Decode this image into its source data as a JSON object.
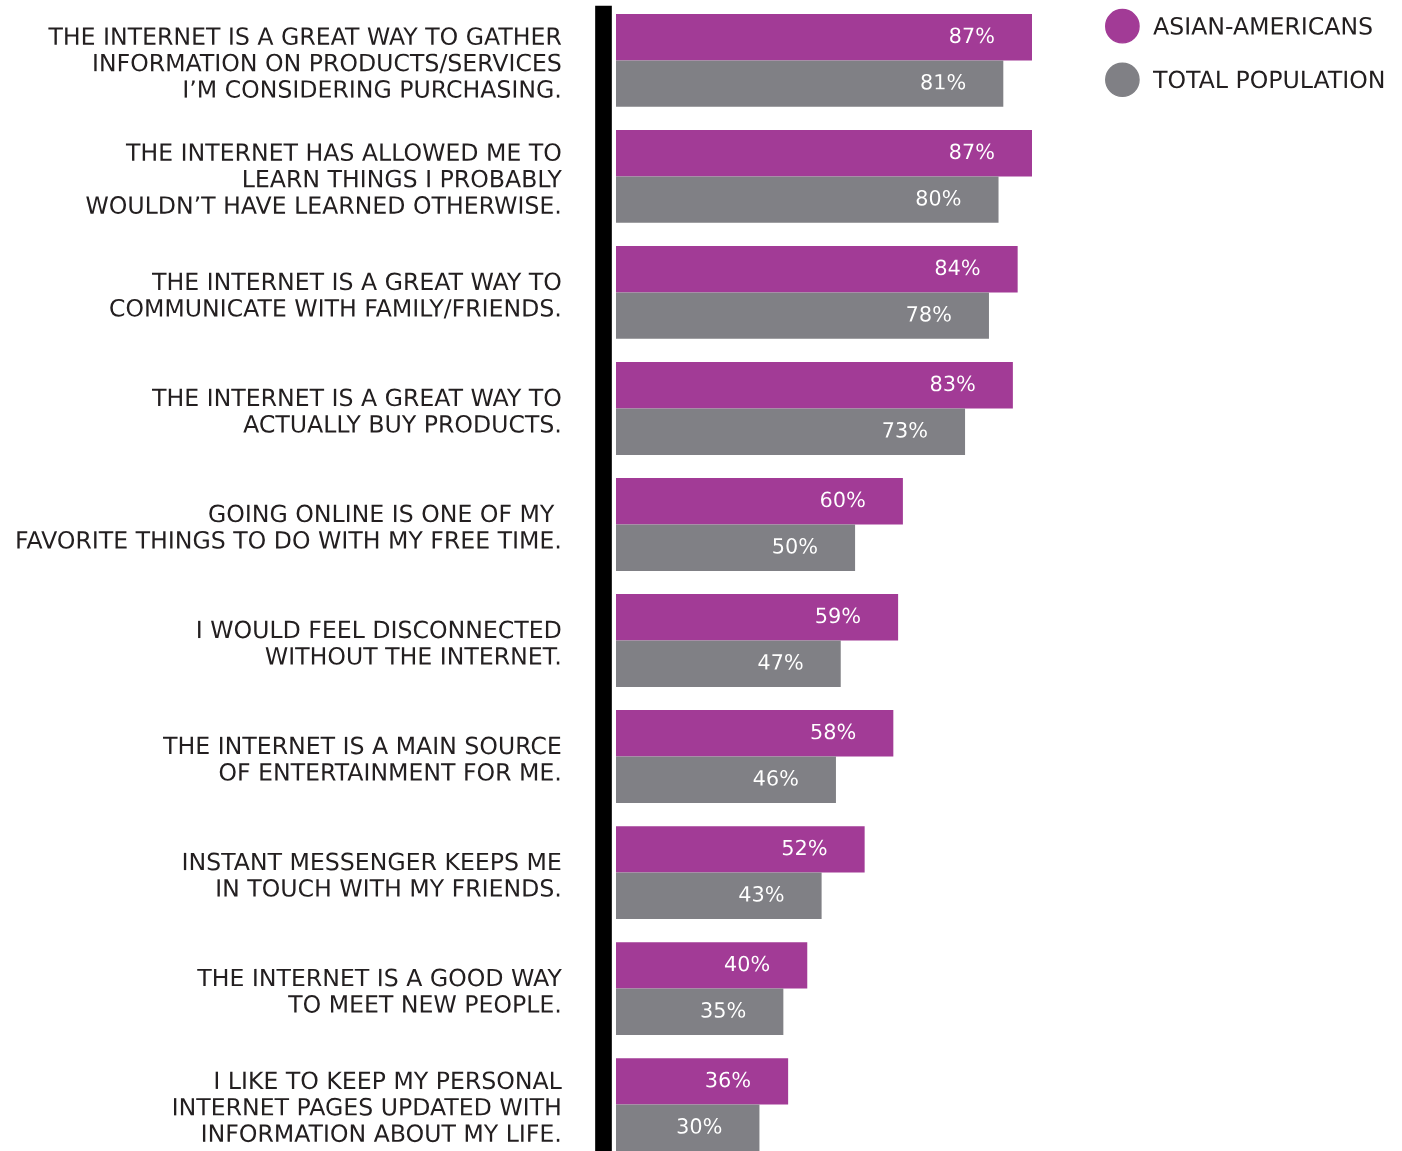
{
  "chart_data": {
    "type": "bar",
    "orientation": "horizontal",
    "categories": [
      "THE INTERNET IS A GREAT WAY TO GATHER\nINFORMATION ON PRODUCTS/SERVICES\nI’M CONSIDERING PURCHASING.",
      "THE INTERNET HAS ALLOWED ME TO\nLEARN THINGS I PROBABLY\nWOULDN’T HAVE LEARNED OTHERWISE.",
      "THE INTERNET IS A GREAT WAY TO\nCOMMUNICATE WITH FAMILY/FRIENDS.",
      "THE INTERNET IS A GREAT WAY TO\nACTUALLY BUY PRODUCTS.",
      "GOING ONLINE IS ONE OF MY \nFAVORITE THINGS TO DO WITH MY FREE TIME.",
      "I WOULD FEEL DISCONNECTED\nWITHOUT THE INTERNET.",
      "THE INTERNET IS A MAIN SOURCE\nOF ENTERTAINMENT FOR ME.",
      "INSTANT MESSENGER KEEPS ME\nIN TOUCH WITH MY FRIENDS.",
      "THE INTERNET IS A GOOD WAY\nTO MEET NEW PEOPLE.",
      "I LIKE TO KEEP MY PERSONAL\nINTERNET PAGES UPDATED WITH\nINFORMATION ABOUT MY LIFE."
    ],
    "series": [
      {
        "name": "ASIAN-AMERICANS",
        "color": "#a23b96",
        "values": [
          87,
          87,
          84,
          83,
          60,
          59,
          58,
          52,
          40,
          36
        ],
        "value_labels": [
          "87%",
          "87%",
          "84%",
          "83%",
          "60%",
          "59%",
          "58%",
          "52%",
          "40%",
          "36%"
        ]
      },
      {
        "name": "TOTAL POPULATION",
        "color": "#808085",
        "values": [
          81,
          80,
          78,
          73,
          50,
          47,
          46,
          43,
          35,
          30
        ],
        "value_labels": [
          "81%",
          "80%",
          "78%",
          "73%",
          "50%",
          "47%",
          "46%",
          "43%",
          "35%",
          "30%"
        ]
      }
    ],
    "legend": "top right",
    "grid": false,
    "tick_labels": "y"
  }
}
